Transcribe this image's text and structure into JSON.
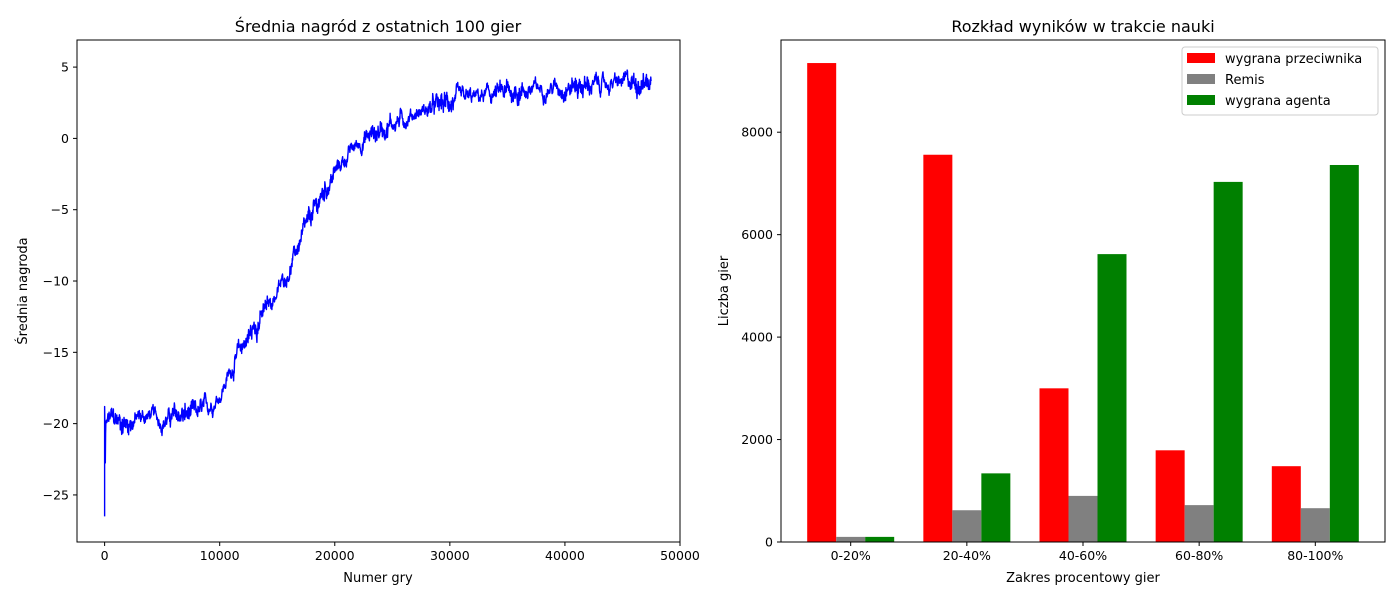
{
  "chart_data": [
    {
      "type": "line",
      "title": "Średnia nagród z ostatnich 100 gier",
      "xlabel": "Numer gry",
      "ylabel": "Średnia nagroda",
      "xlim": [
        -2400,
        50000
      ],
      "ylim": [
        -28.3,
        6.9
      ],
      "xticks": [
        0,
        10000,
        20000,
        30000,
        40000,
        50000
      ],
      "yticks": [
        -25,
        -20,
        -15,
        -10,
        -5,
        0,
        5
      ],
      "series": [
        {
          "color": "#0000ff",
          "x": [
            0,
            100,
            500,
            1000,
            2000,
            3000,
            4000,
            5000,
            6000,
            7000,
            8000,
            9000,
            10000,
            11000,
            12000,
            13000,
            14000,
            15000,
            16000,
            17000,
            18000,
            19000,
            20000,
            21000,
            22000,
            23000,
            24000,
            25000,
            26000,
            27000,
            28000,
            29000,
            30000,
            31000,
            32000,
            33000,
            34000,
            35000,
            36000,
            37000,
            38000,
            39000,
            40000,
            41000,
            42000,
            43000,
            44000,
            45000,
            46000,
            47000,
            47500
          ],
          "y": [
            -26.5,
            -20.2,
            -19.6,
            -19.8,
            -20.0,
            -19.6,
            -19.4,
            -19.8,
            -19.5,
            -19.4,
            -19.3,
            -18.8,
            -18.0,
            -16.2,
            -14.5,
            -13.3,
            -12.0,
            -10.8,
            -9.3,
            -7.2,
            -5.5,
            -3.8,
            -2.4,
            -1.3,
            -0.4,
            0.2,
            0.6,
            1.1,
            1.4,
            1.8,
            2.0,
            2.3,
            2.5,
            2.7,
            2.8,
            3.0,
            3.1,
            3.2,
            3.3,
            3.4,
            3.5,
            3.6,
            3.6,
            3.7,
            3.7,
            3.8,
            3.8,
            3.9,
            3.9,
            4.0,
            4.0
          ],
          "noise_amplitude": 0.6
        }
      ]
    },
    {
      "type": "bar",
      "title": "Rozkład wyników w trakcie nauki",
      "xlabel": "Zakres procentowy gier",
      "ylabel": "Liczba gier",
      "ylim": [
        0,
        9800
      ],
      "yticks": [
        0,
        2000,
        4000,
        6000,
        8000
      ],
      "categories": [
        "0-20%",
        "20-40%",
        "40-60%",
        "60-80%",
        "80-100%"
      ],
      "legend_position": "top-right",
      "series": [
        {
          "name": "wygrana przeciwnika",
          "color": "#ff0000",
          "values": [
            9350,
            7560,
            3000,
            1790,
            1480
          ]
        },
        {
          "name": "Remis",
          "color": "#808080",
          "values": [
            100,
            620,
            900,
            720,
            660
          ]
        },
        {
          "name": "wygrana agenta",
          "color": "#008000",
          "values": [
            100,
            1340,
            5620,
            7030,
            7360
          ]
        }
      ]
    }
  ]
}
